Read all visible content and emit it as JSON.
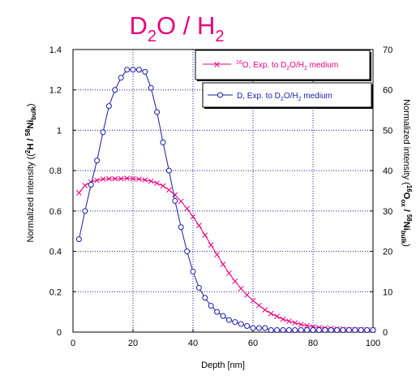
{
  "chart_data": {
    "type": "line",
    "title": {
      "base1": "D",
      "sub1": "2",
      "base2": "O /  H",
      "sub2": "2"
    },
    "xlabel": "Depth [nm]",
    "ylabel_left": {
      "p1": "Normalized intensity ((",
      "sup1": "2",
      "p2": "H / ",
      "sup2": "58",
      "p3": "Ni",
      "sub1": "bulk",
      "p4": ")"
    },
    "ylabel_right": {
      "p1": "Normalized intensity (",
      "sup1": "16",
      "p2": "O",
      "sub1": "ox",
      "p3": " / ",
      "sup2": "58",
      "p4": "Ni",
      "sub2": "bulk",
      "p5": ")"
    },
    "xlim": [
      0,
      100
    ],
    "ylim_left": [
      0,
      1.4
    ],
    "ylim_right": [
      0,
      70
    ],
    "x_ticks": [
      "0",
      "20",
      "40",
      "60",
      "80",
      "100"
    ],
    "y_left_ticks": [
      "0",
      "0.2",
      "0.4",
      "0.6",
      "0.8",
      "1",
      "1.2",
      "1.4"
    ],
    "y_right_ticks": [
      "0",
      "10",
      "20",
      "30",
      "40",
      "50",
      "60",
      "70"
    ],
    "grid": true,
    "legend_position": "top-right",
    "series": [
      {
        "legend": {
          "sup": "16",
          "p1": "O, Exp. to D",
          "sub1": "2",
          "p2": "O/H",
          "sub2": "2",
          "p3": " medium"
        },
        "axis": "right",
        "color": "#e6007e",
        "marker": "x",
        "x": [
          2,
          4,
          6,
          8,
          10,
          12,
          14,
          16,
          18,
          20,
          22,
          24,
          26,
          28,
          30,
          32,
          34,
          36,
          38,
          40,
          42,
          44,
          46,
          48,
          50,
          52,
          54,
          56,
          58,
          60,
          62,
          64,
          66,
          68,
          70,
          72,
          74,
          76,
          78,
          80,
          82,
          84,
          86,
          88,
          90,
          92,
          94,
          96,
          98,
          100
        ],
        "y": [
          34.5,
          36.3,
          37.2,
          37.6,
          37.9,
          38.0,
          38.0,
          38.0,
          38.1,
          38.0,
          37.9,
          37.7,
          37.4,
          36.9,
          36.2,
          35.2,
          34.0,
          32.4,
          30.6,
          28.6,
          26.4,
          24.0,
          21.6,
          19.2,
          16.8,
          14.6,
          12.6,
          10.8,
          9.2,
          7.8,
          6.6,
          5.5,
          4.6,
          3.9,
          3.2,
          2.7,
          2.3,
          1.9,
          1.6,
          1.3,
          1.1,
          1.0,
          0.9,
          0.8,
          0.7,
          0.6,
          0.6,
          0.6,
          0.5,
          0.5
        ]
      },
      {
        "legend": {
          "p1": "D, Exp. to D",
          "sub1": "2",
          "p2": "O/H",
          "sub2": "2",
          "p3": " medium"
        },
        "axis": "left",
        "color": "#1a1aa6",
        "marker": "o",
        "x": [
          2,
          4,
          6,
          8,
          10,
          12,
          14,
          16,
          18,
          20,
          22,
          24,
          26,
          28,
          30,
          32,
          34,
          36,
          38,
          40,
          42,
          44,
          46,
          48,
          50,
          52,
          54,
          56,
          58,
          60,
          62,
          64,
          66,
          68,
          70,
          72,
          74,
          76,
          78,
          80,
          82,
          84,
          86,
          88,
          90,
          92,
          94,
          96,
          98,
          100
        ],
        "y": [
          0.46,
          0.6,
          0.73,
          0.85,
          0.99,
          1.12,
          1.2,
          1.26,
          1.3,
          1.3,
          1.3,
          1.29,
          1.21,
          1.09,
          0.94,
          0.8,
          0.65,
          0.52,
          0.4,
          0.3,
          0.22,
          0.17,
          0.13,
          0.1,
          0.08,
          0.06,
          0.05,
          0.04,
          0.03,
          0.02,
          0.02,
          0.02,
          0.01,
          0.01,
          0.01,
          0.01,
          0.01,
          0.01,
          0.01,
          0.01,
          0.01,
          0.01,
          0.01,
          0.01,
          0.01,
          0.01,
          0.01,
          0.01,
          0.01,
          0.01
        ]
      }
    ]
  }
}
